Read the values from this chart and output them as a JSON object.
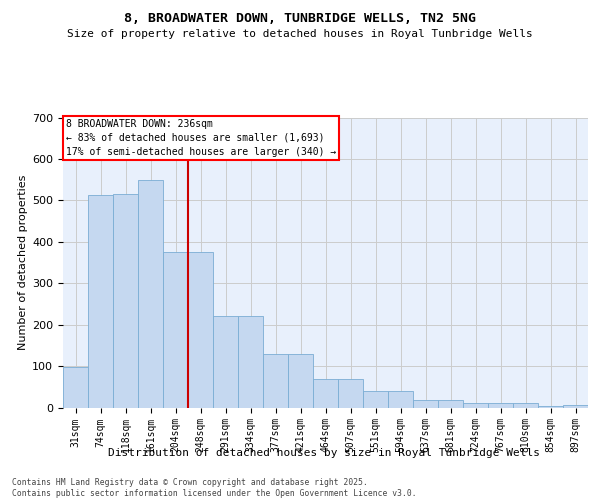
{
  "title1": "8, BROADWATER DOWN, TUNBRIDGE WELLS, TN2 5NG",
  "title2": "Size of property relative to detached houses in Royal Tunbridge Wells",
  "xlabel": "Distribution of detached houses by size in Royal Tunbridge Wells",
  "ylabel": "Number of detached properties",
  "categories": [
    "31sqm",
    "74sqm",
    "118sqm",
    "161sqm",
    "204sqm",
    "248sqm",
    "291sqm",
    "334sqm",
    "377sqm",
    "421sqm",
    "464sqm",
    "507sqm",
    "551sqm",
    "594sqm",
    "637sqm",
    "681sqm",
    "724sqm",
    "767sqm",
    "810sqm",
    "854sqm",
    "897sqm"
  ],
  "bar_heights": [
    97,
    513,
    515,
    548,
    375,
    375,
    222,
    222,
    130,
    130,
    68,
    68,
    40,
    40,
    18,
    18,
    10,
    10,
    12,
    4,
    5
  ],
  "bar_color": "#c5d8f0",
  "bar_edgecolor": "#7aadd4",
  "grid_color": "#cccccc",
  "background_color": "#e8f0fc",
  "vline_color": "#cc0000",
  "vline_x_idx": 4.5,
  "annotation_text": "8 BROADWATER DOWN: 236sqm\n← 83% of detached houses are smaller (1,693)\n17% of semi-detached houses are larger (340) →",
  "footer_text": "Contains HM Land Registry data © Crown copyright and database right 2025.\nContains public sector information licensed under the Open Government Licence v3.0.",
  "ylim": [
    0,
    700
  ],
  "yticks": [
    0,
    100,
    200,
    300,
    400,
    500,
    600,
    700
  ]
}
